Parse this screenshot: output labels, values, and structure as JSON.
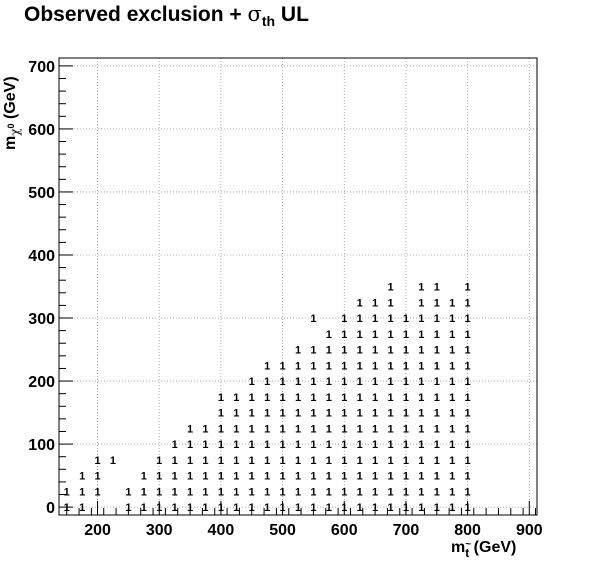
{
  "chart_data": {
    "type": "scatter",
    "title": "Observed exclusion + σth UL",
    "title_main": "Observed exclusion + ",
    "title_sigma": "σ",
    "title_sub": "th",
    "title_tail": " UL",
    "xlabel": "m_t̃ (GeV)",
    "xlabel_main": "m",
    "xlabel_sub": "t",
    "xlabel_unit": " (GeV)",
    "ylabel": "m_χ̃0 (GeV)",
    "ylabel_main": "m",
    "ylabel_sub": "χ",
    "ylabel_sup": "0",
    "ylabel_unit": " (GeV)",
    "xlim": [
      137.5,
      912.5
    ],
    "ylim": [
      -12.5,
      712.5
    ],
    "grid": true,
    "marker": "1",
    "xticks": [
      200,
      300,
      400,
      500,
      600,
      700,
      800,
      900
    ],
    "yticks": [
      0,
      100,
      200,
      300,
      400,
      500,
      600,
      700
    ],
    "columns": [
      {
        "x": 150,
        "y": [
          0,
          25
        ]
      },
      {
        "x": 175,
        "y": [
          0,
          25,
          50
        ]
      },
      {
        "x": 200,
        "y": [
          25,
          50,
          75
        ]
      },
      {
        "x": 225,
        "y": [
          75
        ]
      },
      {
        "x": 250,
        "y": [
          0,
          25
        ]
      },
      {
        "x": 275,
        "y": [
          0,
          25,
          50
        ]
      },
      {
        "x": 300,
        "y": [
          0,
          25,
          50,
          75
        ]
      },
      {
        "x": 325,
        "y": [
          0,
          25,
          50,
          75,
          100
        ]
      },
      {
        "x": 350,
        "y": [
          0,
          25,
          50,
          75,
          100,
          125
        ]
      },
      {
        "x": 375,
        "y": [
          0,
          25,
          50,
          75,
          100,
          125
        ]
      },
      {
        "x": 400,
        "y": [
          0,
          25,
          50,
          75,
          100,
          125,
          150,
          175
        ]
      },
      {
        "x": 425,
        "y": [
          0,
          25,
          50,
          75,
          100,
          125,
          150,
          175
        ]
      },
      {
        "x": 450,
        "y": [
          0,
          25,
          50,
          75,
          100,
          125,
          150,
          175,
          200
        ]
      },
      {
        "x": 475,
        "y": [
          0,
          25,
          50,
          75,
          100,
          125,
          150,
          175,
          200,
          225
        ]
      },
      {
        "x": 500,
        "y": [
          0,
          25,
          50,
          75,
          100,
          125,
          150,
          175,
          200,
          225
        ]
      },
      {
        "x": 525,
        "y": [
          0,
          25,
          50,
          75,
          100,
          125,
          150,
          175,
          200,
          225,
          250
        ]
      },
      {
        "x": 550,
        "y": [
          0,
          25,
          50,
          75,
          100,
          125,
          150,
          175,
          200,
          225,
          250,
          300
        ]
      },
      {
        "x": 575,
        "y": [
          0,
          25,
          50,
          75,
          100,
          125,
          150,
          175,
          200,
          225,
          250,
          275
        ]
      },
      {
        "x": 600,
        "y": [
          0,
          25,
          50,
          75,
          100,
          125,
          150,
          175,
          200,
          225,
          250,
          275,
          300
        ]
      },
      {
        "x": 625,
        "y": [
          0,
          25,
          50,
          75,
          100,
          125,
          150,
          175,
          200,
          225,
          250,
          275,
          300,
          325
        ]
      },
      {
        "x": 650,
        "y": [
          0,
          25,
          50,
          75,
          100,
          125,
          150,
          175,
          200,
          225,
          250,
          275,
          300,
          325
        ]
      },
      {
        "x": 675,
        "y": [
          0,
          25,
          50,
          75,
          100,
          125,
          150,
          175,
          200,
          225,
          250,
          275,
          300,
          325,
          350
        ]
      },
      {
        "x": 700,
        "y": [
          0,
          25,
          50,
          75,
          100,
          125,
          150,
          175,
          200,
          225,
          250,
          275,
          300
        ]
      },
      {
        "x": 725,
        "y": [
          0,
          25,
          50,
          75,
          100,
          125,
          150,
          175,
          200,
          225,
          250,
          275,
          300,
          325,
          350
        ]
      },
      {
        "x": 750,
        "y": [
          0,
          25,
          50,
          75,
          100,
          125,
          150,
          175,
          200,
          225,
          250,
          275,
          300,
          325,
          350
        ]
      },
      {
        "x": 775,
        "y": [
          0,
          25,
          50,
          75,
          100,
          125,
          150,
          175,
          200,
          225,
          250,
          275,
          300,
          325
        ]
      },
      {
        "x": 800,
        "y": [
          0,
          25,
          50,
          75,
          100,
          125,
          150,
          175,
          200,
          225,
          250,
          275,
          300,
          325,
          350
        ]
      }
    ]
  }
}
